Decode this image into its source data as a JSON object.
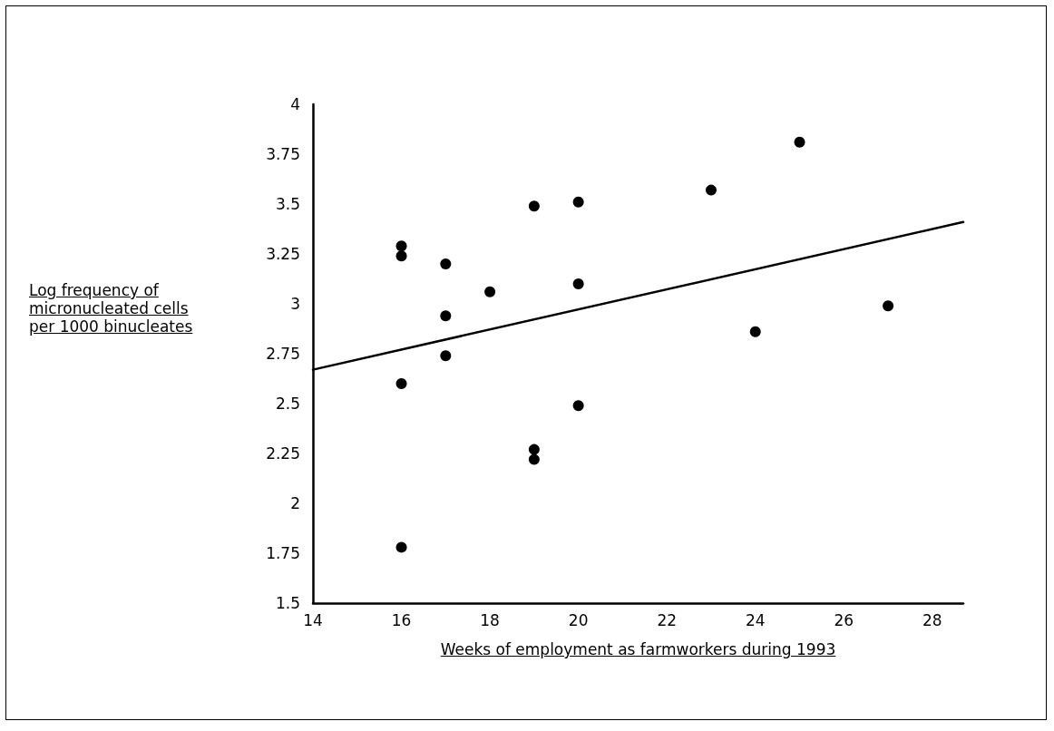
{
  "chart_data": {
    "type": "scatter",
    "xlabel": "Weeks of employment as farmworkers during 1993",
    "ylabel": "Log frequency of\nmicronucleated cells\nper 1000 binucleates",
    "xlim": [
      14,
      28.7
    ],
    "xticks": [
      14,
      16,
      18,
      20,
      22,
      24,
      26,
      28
    ],
    "ylim": [
      1.5,
      4
    ],
    "yticks": [
      1.5,
      1.75,
      2,
      2.25,
      2.5,
      2.75,
      3,
      3.25,
      3.5,
      3.75,
      4
    ],
    "grid": false,
    "series": [
      {
        "color": "#000000",
        "marker": "circle",
        "x": [
          16,
          16,
          16,
          16,
          17,
          17,
          17,
          18,
          19,
          19,
          19,
          20,
          20,
          20,
          23,
          24,
          25,
          27
        ],
        "values": [
          3.29,
          3.24,
          2.6,
          1.78,
          3.2,
          2.94,
          2.74,
          3.06,
          3.49,
          2.27,
          2.22,
          3.51,
          3.1,
          2.49,
          3.57,
          2.86,
          3.81,
          2.99
        ]
      },
      {
        "type": "line",
        "color": "#000000",
        "marker": "none",
        "line_style": "solid",
        "x": [
          14,
          28.7
        ],
        "values": [
          2.67,
          3.41
        ]
      }
    ]
  }
}
